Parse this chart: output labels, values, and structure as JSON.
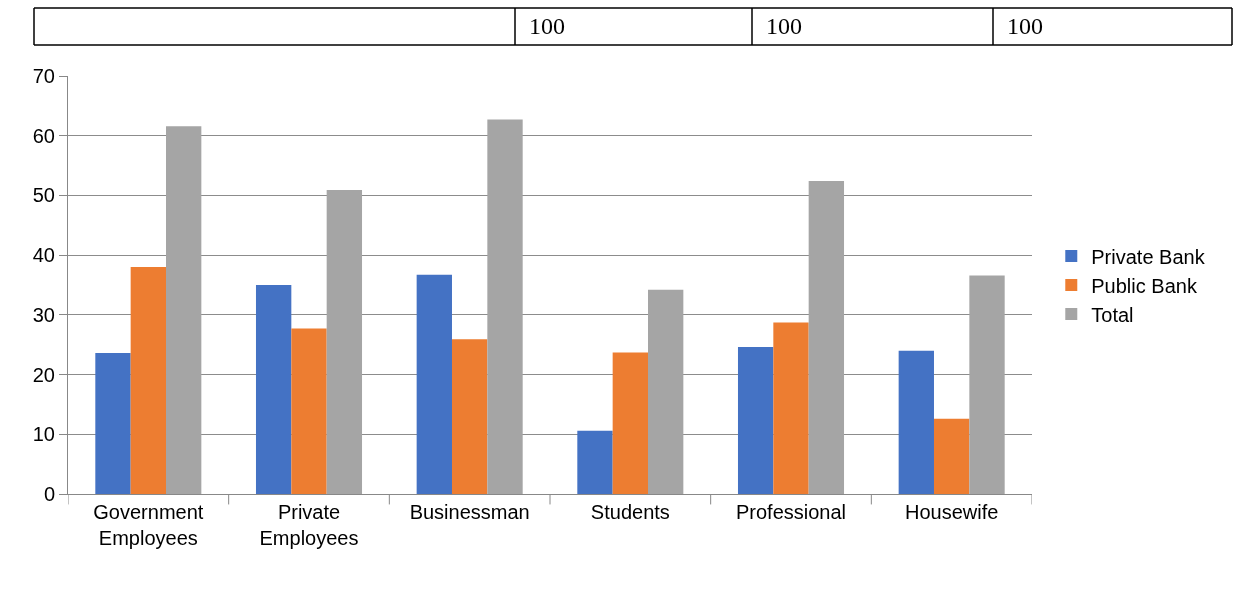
{
  "chart_data": {
    "type": "bar",
    "categories": [
      "Government Employees",
      "Private Employees",
      "Businessman",
      "Students",
      "Professional",
      "Housewife"
    ],
    "series": [
      {
        "name": "Private Bank",
        "color": "#4472c4",
        "values": [
          23.6,
          35.0,
          36.7,
          10.6,
          24.6,
          24.0
        ]
      },
      {
        "name": "Public Bank",
        "color": "#ed7d31",
        "values": [
          38.0,
          27.7,
          25.9,
          23.7,
          28.7,
          12.6
        ]
      },
      {
        "name": "Total",
        "color": "#a5a5a5",
        "values": [
          61.6,
          50.9,
          62.7,
          34.2,
          52.4,
          36.6
        ]
      }
    ],
    "ylim": [
      0,
      70
    ],
    "yticks": [
      0,
      10,
      20,
      30,
      40,
      50,
      60,
      70
    ],
    "grid": "y",
    "legend": "right",
    "annotations": [
      "100",
      "100",
      "100"
    ]
  }
}
